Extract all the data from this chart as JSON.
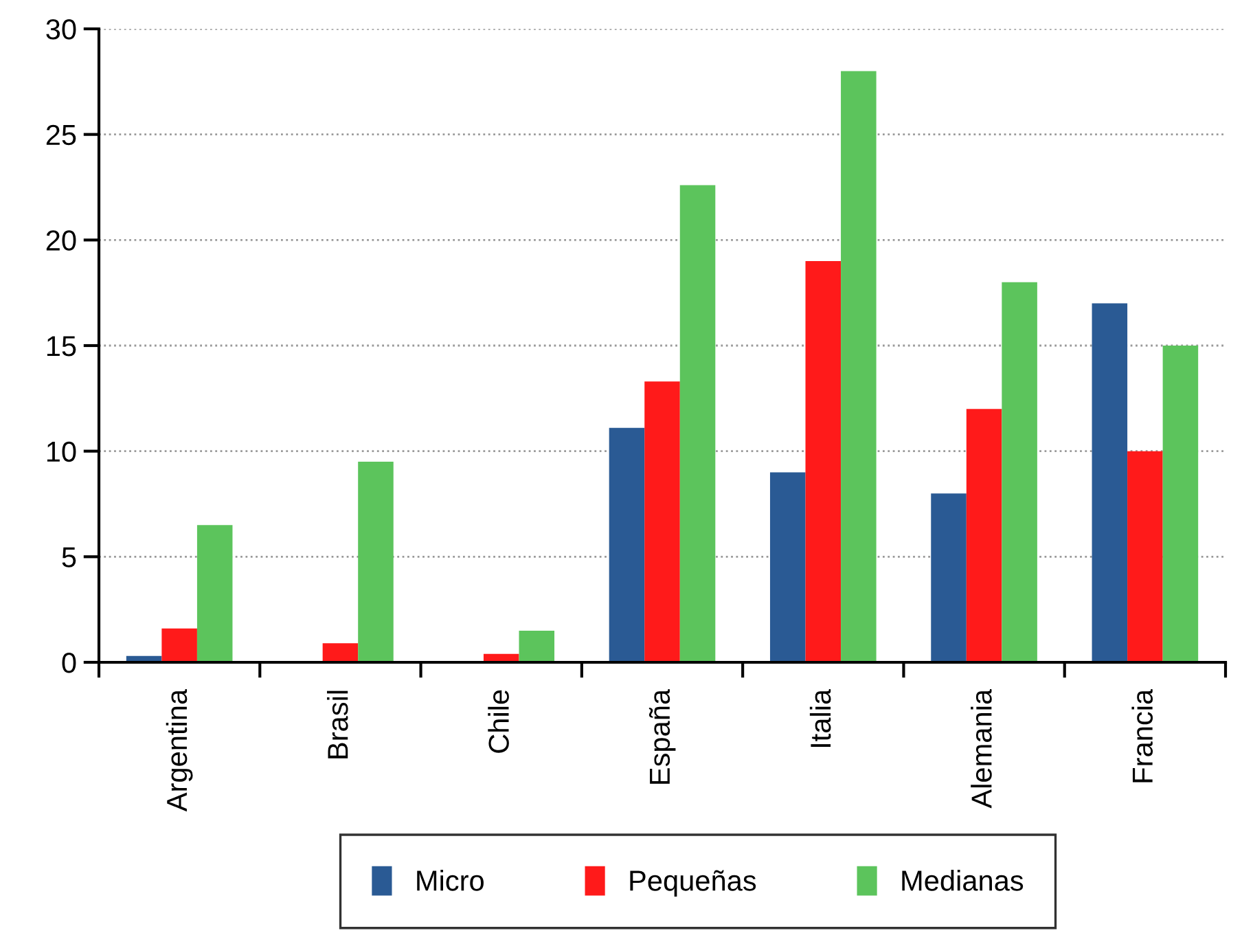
{
  "chart_data": {
    "type": "bar",
    "categories": [
      "Argentina",
      "Brasil",
      "Chile",
      "España",
      "Italia",
      "Alemania",
      "Francia"
    ],
    "series": [
      {
        "name": "Micro",
        "color": "#2a5a94",
        "values": [
          0.3,
          0,
          0,
          11.1,
          9,
          8,
          17
        ]
      },
      {
        "name": "Pequeñas",
        "color": "#ff1a1a",
        "values": [
          1.6,
          0.9,
          0.4,
          13.3,
          19,
          12,
          10
        ]
      },
      {
        "name": "Medianas",
        "color": "#5cc45c",
        "values": [
          6.5,
          9.5,
          1.5,
          22.6,
          28,
          18,
          15
        ]
      }
    ],
    "ylim": [
      0,
      30
    ],
    "yticks": [
      0,
      5,
      10,
      15,
      20,
      25,
      30
    ],
    "grid": "y",
    "legend": "bottom"
  }
}
